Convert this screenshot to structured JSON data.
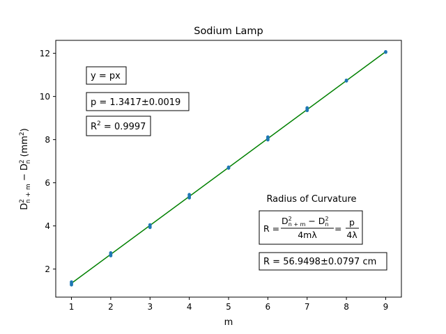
{
  "chart_data": {
    "type": "scatter",
    "title": "Sodium Lamp",
    "xlabel": "m",
    "ylabel_parts": {
      "D": "D",
      "sup": "2",
      "sub_a": "n + m",
      "minus": " − ",
      "sub_b": "n",
      "unit": " (mm",
      "unit_sup": "2",
      "unit_close": ")"
    },
    "xlim": [
      0.6,
      9.4
    ],
    "ylim": [
      0.7,
      12.6
    ],
    "xticks": [
      1,
      2,
      3,
      4,
      5,
      6,
      7,
      8,
      9
    ],
    "yticks": [
      2,
      4,
      6,
      8,
      10,
      12
    ],
    "grid": false,
    "legend": "none",
    "series": [
      {
        "values": [
          {
            "x": 1,
            "y": 1.27
          },
          {
            "x": 1,
            "y": 1.33
          },
          {
            "x": 1,
            "y": 1.4
          },
          {
            "x": 2,
            "y": 2.62
          },
          {
            "x": 2,
            "y": 2.68
          },
          {
            "x": 2,
            "y": 2.75
          },
          {
            "x": 3,
            "y": 3.93
          },
          {
            "x": 3,
            "y": 3.99
          },
          {
            "x": 3,
            "y": 4.05
          },
          {
            "x": 4,
            "y": 5.3
          },
          {
            "x": 4,
            "y": 5.37
          },
          {
            "x": 4,
            "y": 5.45
          },
          {
            "x": 5,
            "y": 6.68
          },
          {
            "x": 5,
            "y": 6.72
          },
          {
            "x": 6,
            "y": 7.99
          },
          {
            "x": 6,
            "y": 8.05
          },
          {
            "x": 6,
            "y": 8.12
          },
          {
            "x": 7,
            "y": 9.35
          },
          {
            "x": 7,
            "y": 9.41
          },
          {
            "x": 7,
            "y": 9.47
          },
          {
            "x": 8,
            "y": 10.72
          },
          {
            "x": 8,
            "y": 10.75
          },
          {
            "x": 9,
            "y": 12.05
          },
          {
            "x": 9,
            "y": 12.07
          }
        ]
      }
    ],
    "fit": {
      "slope": 1.3417,
      "x_range": [
        1,
        9
      ]
    },
    "annotations": {
      "model": "y = px",
      "p_value": "p = 1.3417±0.0019",
      "r2_base": "R",
      "r2_sup": "2",
      "r2_rest": " = 0.9997",
      "roc_title": "Radius of Curvature",
      "formula": {
        "lhs": "R = ",
        "num_D": "D",
        "num_sup1": "2",
        "num_sub1": "n + m",
        "num_minus": " − D",
        "num_sup2": "2",
        "num_sub2": "n",
        "den1": "4mλ",
        "eq": " = ",
        "num2": "p",
        "den2": "4λ"
      },
      "roc_value": "R = 56.9498±0.0797 cm"
    },
    "colors": {
      "points": "#1f77b4",
      "fit_line": "#008000",
      "axes": "#000000"
    }
  }
}
